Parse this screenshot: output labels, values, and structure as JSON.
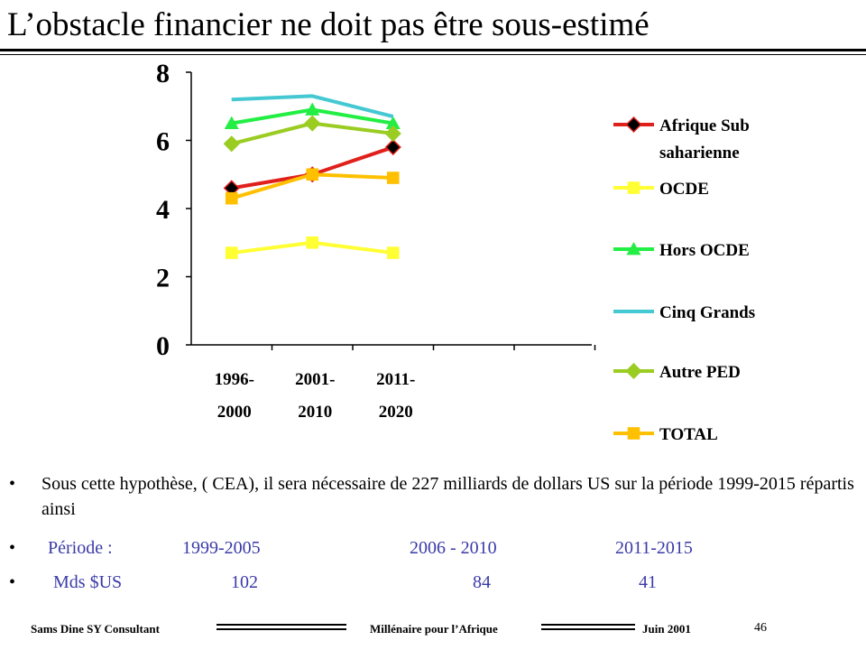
{
  "title": "L’obstacle financier ne doit pas être sous-estimé",
  "chart_data": {
    "type": "line",
    "categories": [
      [
        "1996-",
        "2000"
      ],
      [
        "2001-",
        "2010"
      ],
      [
        "2011-",
        "2020"
      ]
    ],
    "ylim": [
      0,
      8
    ],
    "yticks": [
      "0",
      "2",
      "4",
      "6",
      "8"
    ],
    "grid": false,
    "legend_position": "right",
    "series": [
      {
        "name": "Afrique Sub saharienne",
        "legend_lines": [
          "Afrique Sub",
          "saharienne"
        ],
        "color": "#e0201b",
        "marker": "diamond",
        "marker_fill": "#000000",
        "values": [
          4.6,
          5.0,
          5.8
        ]
      },
      {
        "name": "OCDE",
        "legend_lines": [
          "OCDE"
        ],
        "color": "#ffff33",
        "marker": "square",
        "marker_fill": "#ffff33",
        "values": [
          2.7,
          3.0,
          2.7
        ]
      },
      {
        "name": "Hors OCDE",
        "legend_lines": [
          "Hors OCDE"
        ],
        "color": "#22ee44",
        "marker": "triangle",
        "marker_fill": "#22ee44",
        "values": [
          6.5,
          6.9,
          6.5
        ]
      },
      {
        "name": "Cinq Grands",
        "legend_lines": [
          "Cinq Grands"
        ],
        "color": "#44c8d2",
        "marker": "none",
        "marker_fill": "#44c8d2",
        "values": [
          7.2,
          7.3,
          6.7
        ]
      },
      {
        "name": "Autre PED",
        "legend_lines": [
          "Autre PED"
        ],
        "color": "#9acc22",
        "marker": "diamond",
        "marker_fill": "#9acc22",
        "values": [
          5.9,
          6.5,
          6.2
        ]
      },
      {
        "name": "TOTAL",
        "legend_lines": [
          "TOTAL"
        ],
        "color": "#ffc000",
        "marker": "square",
        "marker_fill": "#ffc000",
        "values": [
          4.3,
          5.0,
          4.9
        ]
      }
    ]
  },
  "body": {
    "bullet": "•",
    "paragraph": "Sous cette hypothèse, ( CEA), il sera nécessaire de 227 milliards de dollars US sur la période 1999-2015 répartis ainsi",
    "period_label": "Période :",
    "periods": [
      "1999-2005",
      "2006 - 2010",
      "2011-2015"
    ],
    "amount_label": "Mds $US",
    "amounts": [
      "102",
      "84",
      "41"
    ]
  },
  "footer": {
    "left": "Sams Dine SY Consultant",
    "center": "Millénaire pour l’Afrique",
    "right": "Juin  2001",
    "page": "46"
  }
}
